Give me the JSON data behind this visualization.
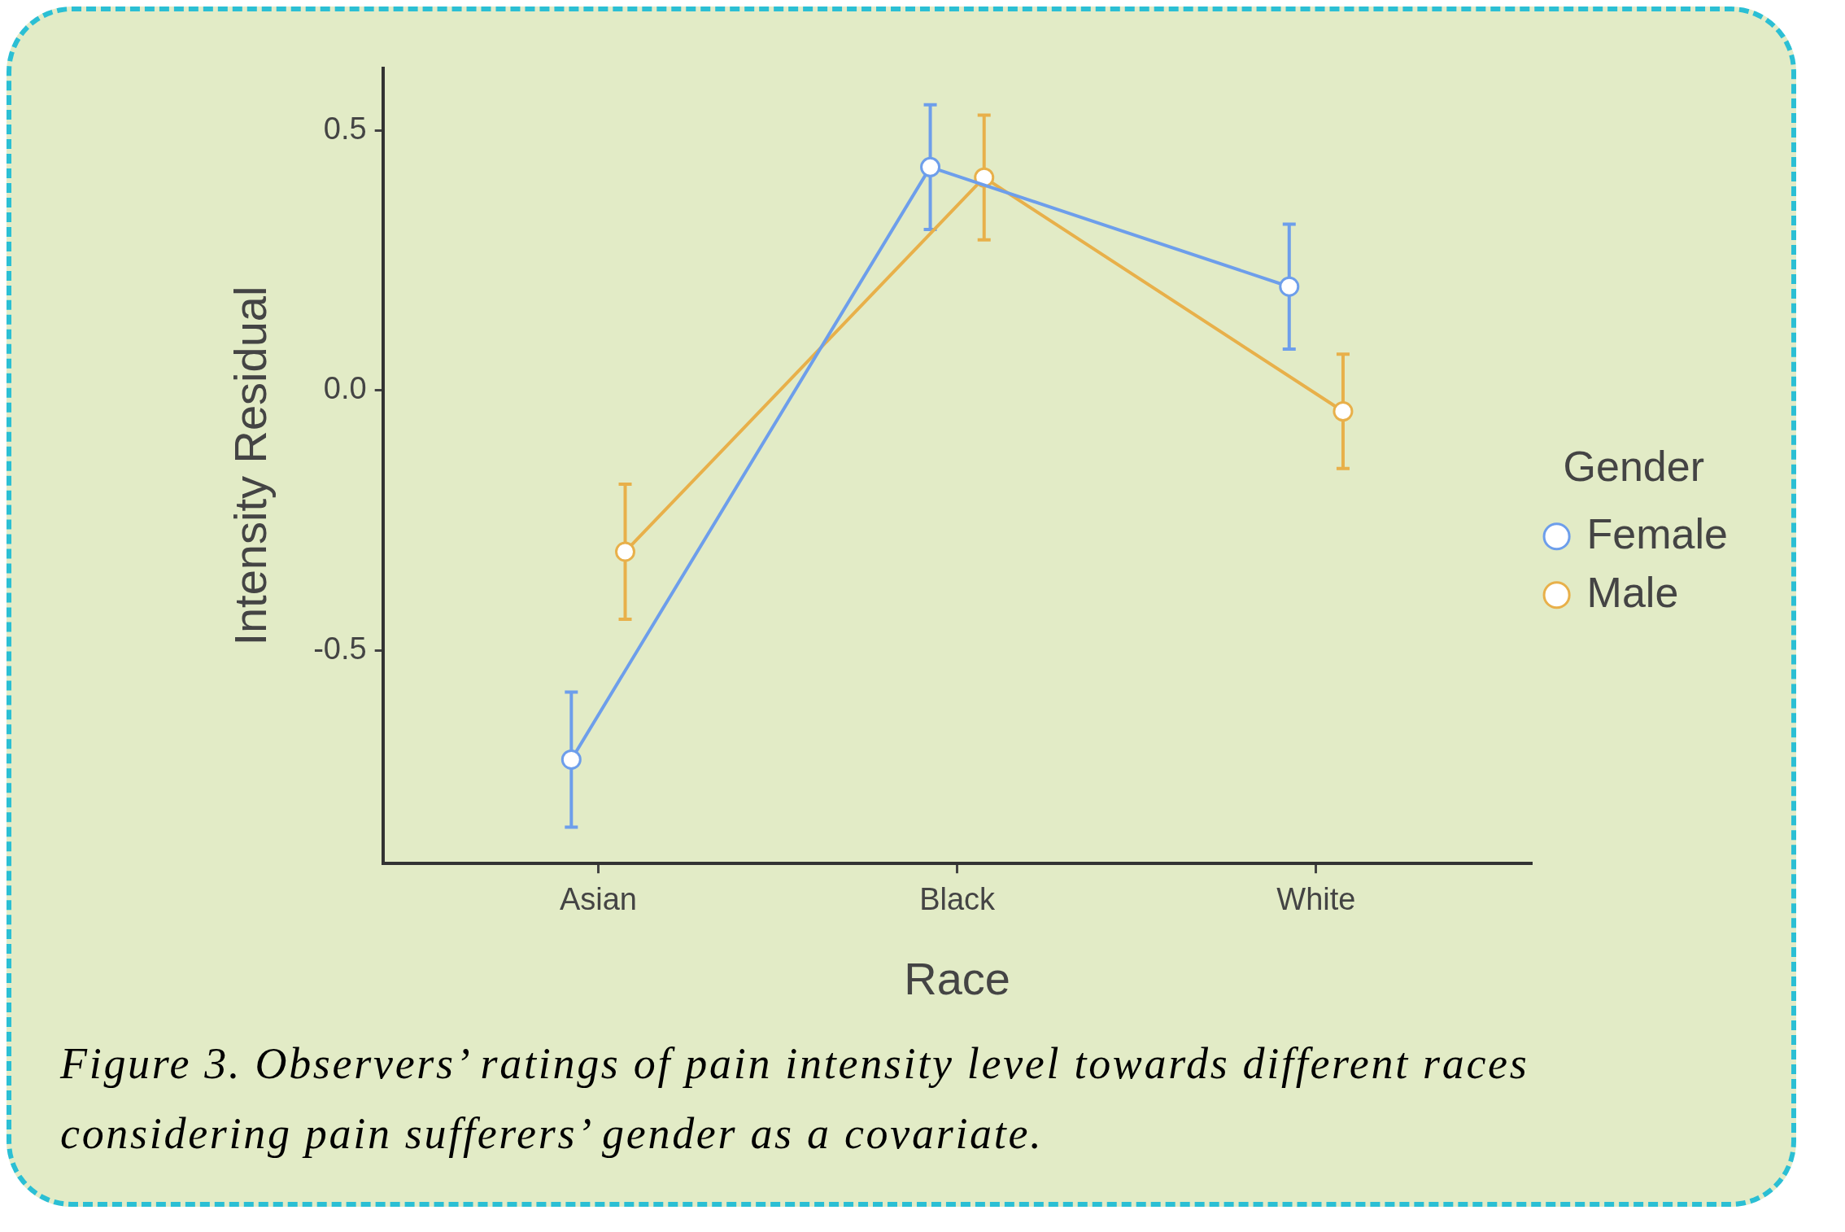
{
  "chart_data": {
    "type": "line",
    "xlabel": "Race",
    "ylabel": "Intensity Residual",
    "legend_title": "Gender",
    "categories": [
      "Asian",
      "Black",
      "White"
    ],
    "series": [
      {
        "name": "Female",
        "color": "#6d9eeb",
        "values": [
          -0.71,
          0.43,
          0.2
        ],
        "errors": [
          [
            -0.84,
            -0.58
          ],
          [
            0.31,
            0.55
          ],
          [
            0.08,
            0.32
          ]
        ]
      },
      {
        "name": "Male",
        "color": "#e8b04a",
        "values": [
          -0.31,
          0.41,
          -0.04
        ],
        "errors": [
          [
            -0.44,
            -0.18
          ],
          [
            0.29,
            0.53
          ],
          [
            -0.15,
            0.07
          ]
        ]
      }
    ],
    "ylim": [
      -0.91,
      0.62
    ],
    "yticks": [
      {
        "value": -0.5,
        "label": "-0.5"
      },
      {
        "value": 0,
        "label": "0.0"
      },
      {
        "value": 0.5,
        "label": "0.5"
      }
    ],
    "grid": false,
    "legend": "right",
    "marker": "circle",
    "line_style": "solid",
    "annotations": [
      "Figure 3. Observers’ ratings of pain intensity level towards different races considering pain sufferers’ gender as a covariate."
    ]
  }
}
